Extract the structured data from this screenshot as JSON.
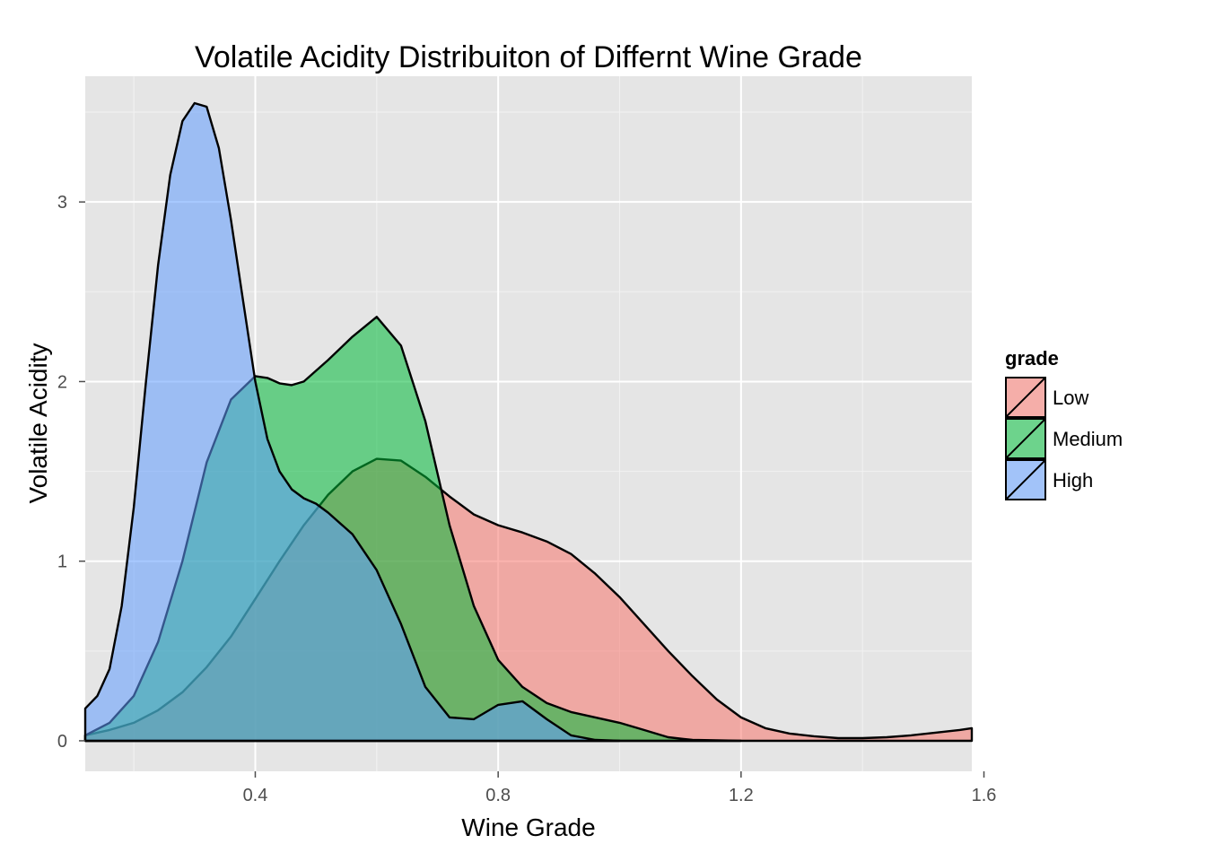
{
  "chart_data": {
    "type": "area",
    "title": "Volatile Acidity Distribuiton of Differnt Wine Grade",
    "xlabel": "Wine Grade",
    "ylabel": "Volatile Acidity",
    "xlim": [
      0.12,
      1.58
    ],
    "ylim": [
      -0.17,
      3.7
    ],
    "x_ticks": [
      0.4,
      0.8,
      1.2,
      1.6
    ],
    "x_tick_labels": [
      "0.4",
      "0.8",
      "1.2",
      "1.6"
    ],
    "y_ticks": [
      0,
      1,
      2,
      3
    ],
    "y_tick_labels": [
      "0",
      "1",
      "2",
      "3"
    ],
    "grid": true,
    "legend": {
      "title": "grade",
      "position": "right"
    },
    "series": [
      {
        "name": "Low",
        "color": "#F8766D",
        "x": [
          0.12,
          0.16,
          0.2,
          0.24,
          0.28,
          0.32,
          0.36,
          0.4,
          0.44,
          0.48,
          0.52,
          0.56,
          0.6,
          0.64,
          0.68,
          0.72,
          0.76,
          0.8,
          0.84,
          0.88,
          0.92,
          0.96,
          1.0,
          1.04,
          1.08,
          1.12,
          1.16,
          1.2,
          1.24,
          1.28,
          1.32,
          1.36,
          1.4,
          1.44,
          1.48,
          1.52,
          1.56,
          1.58
        ],
        "values": [
          0.03,
          0.06,
          0.1,
          0.17,
          0.27,
          0.41,
          0.58,
          0.79,
          1.0,
          1.2,
          1.37,
          1.5,
          1.57,
          1.56,
          1.47,
          1.36,
          1.26,
          1.2,
          1.16,
          1.11,
          1.04,
          0.93,
          0.8,
          0.65,
          0.5,
          0.36,
          0.23,
          0.13,
          0.07,
          0.04,
          0.025,
          0.015,
          0.015,
          0.02,
          0.03,
          0.045,
          0.06,
          0.07
        ]
      },
      {
        "name": "Medium",
        "color": "#00BA38",
        "x": [
          0.12,
          0.16,
          0.2,
          0.24,
          0.28,
          0.32,
          0.36,
          0.4,
          0.42,
          0.44,
          0.46,
          0.48,
          0.52,
          0.56,
          0.6,
          0.64,
          0.68,
          0.72,
          0.76,
          0.8,
          0.84,
          0.88,
          0.92,
          0.96,
          1.0,
          1.04,
          1.08,
          1.12,
          1.16,
          1.2
        ],
        "values": [
          0.03,
          0.1,
          0.25,
          0.55,
          1.0,
          1.55,
          1.9,
          2.03,
          2.02,
          1.99,
          1.98,
          2.0,
          2.12,
          2.25,
          2.36,
          2.2,
          1.78,
          1.2,
          0.75,
          0.45,
          0.3,
          0.21,
          0.16,
          0.13,
          0.1,
          0.06,
          0.02,
          0.005,
          0.003,
          0.0
        ]
      },
      {
        "name": "High",
        "color": "#619CFF",
        "x": [
          0.12,
          0.14,
          0.16,
          0.18,
          0.2,
          0.22,
          0.24,
          0.26,
          0.28,
          0.3,
          0.32,
          0.34,
          0.36,
          0.38,
          0.4,
          0.42,
          0.44,
          0.46,
          0.48,
          0.5,
          0.52,
          0.56,
          0.6,
          0.64,
          0.68,
          0.72,
          0.76,
          0.8,
          0.84,
          0.88,
          0.92,
          0.96,
          1.0
        ],
        "values": [
          0.18,
          0.25,
          0.4,
          0.75,
          1.3,
          2.0,
          2.65,
          3.15,
          3.45,
          3.55,
          3.53,
          3.3,
          2.9,
          2.45,
          2.0,
          1.68,
          1.5,
          1.4,
          1.35,
          1.32,
          1.27,
          1.15,
          0.95,
          0.65,
          0.3,
          0.13,
          0.12,
          0.2,
          0.22,
          0.12,
          0.03,
          0.005,
          0.0
        ]
      }
    ]
  }
}
